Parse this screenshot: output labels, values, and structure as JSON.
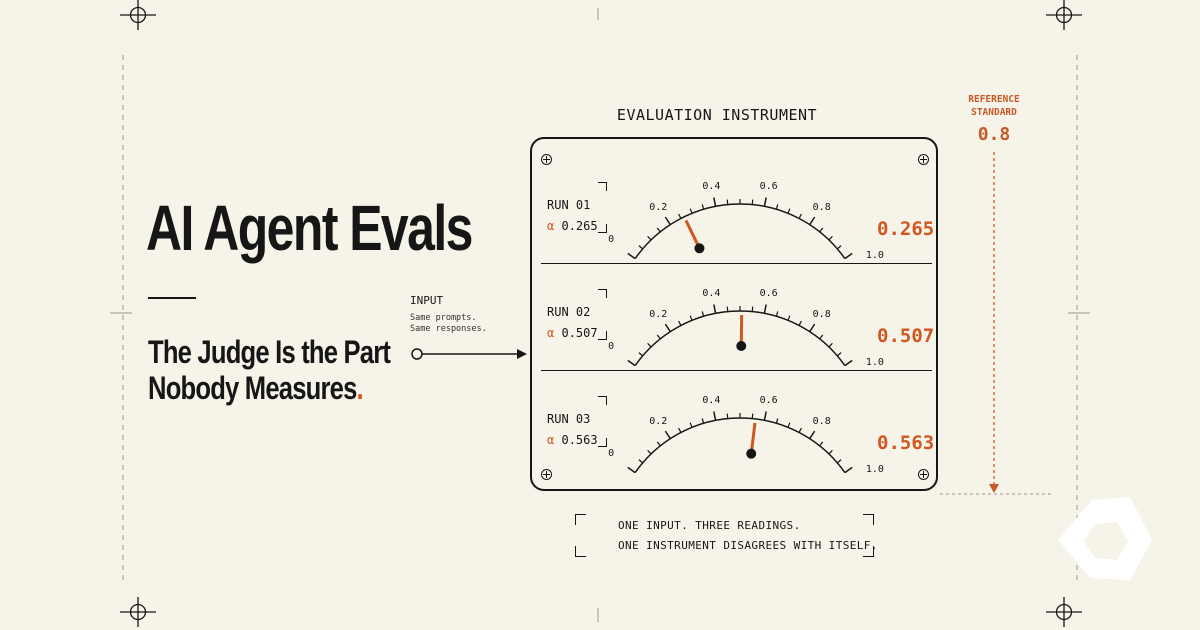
{
  "headline": {
    "title": "AI Agent Evals",
    "subtitle_line1": "The Judge Is the Part",
    "subtitle_line2": "Nobody Measures",
    "subtitle_period": "."
  },
  "input": {
    "label": "INPUT",
    "desc_line1": "Same prompts.",
    "desc_line2": "Same responses."
  },
  "instrument": {
    "title": "EVALUATION INSTRUMENT",
    "scale_labels": [
      "0",
      "0.2",
      "0.4",
      "0.6",
      "0.8",
      "1.0"
    ],
    "runs": [
      {
        "label": "RUN 01",
        "alpha_symbol": "α",
        "alpha": "0.265",
        "reading": "0.265",
        "value": 0.265
      },
      {
        "label": "RUN 02",
        "alpha_symbol": "α",
        "alpha": "0.507",
        "reading": "0.507",
        "value": 0.507
      },
      {
        "label": "RUN 03",
        "alpha_symbol": "α",
        "alpha": "0.563",
        "reading": "0.563",
        "value": 0.563
      }
    ]
  },
  "reference": {
    "label_line1": "REFERENCE",
    "label_line2": "STANDARD",
    "value": "0.8"
  },
  "caption": {
    "line1": "ONE INPUT. THREE READINGS.",
    "line2": "ONE INSTRUMENT DISAGREES WITH ITSELF."
  },
  "colors": {
    "background": "#f6f3e8",
    "ink": "#161616",
    "accent": "#d2561f",
    "reference": "#c85a2a"
  },
  "icons": [
    "registration-mark-icon",
    "screw-icon",
    "arrow-right-icon",
    "arrow-down-icon",
    "logo-icon"
  ]
}
